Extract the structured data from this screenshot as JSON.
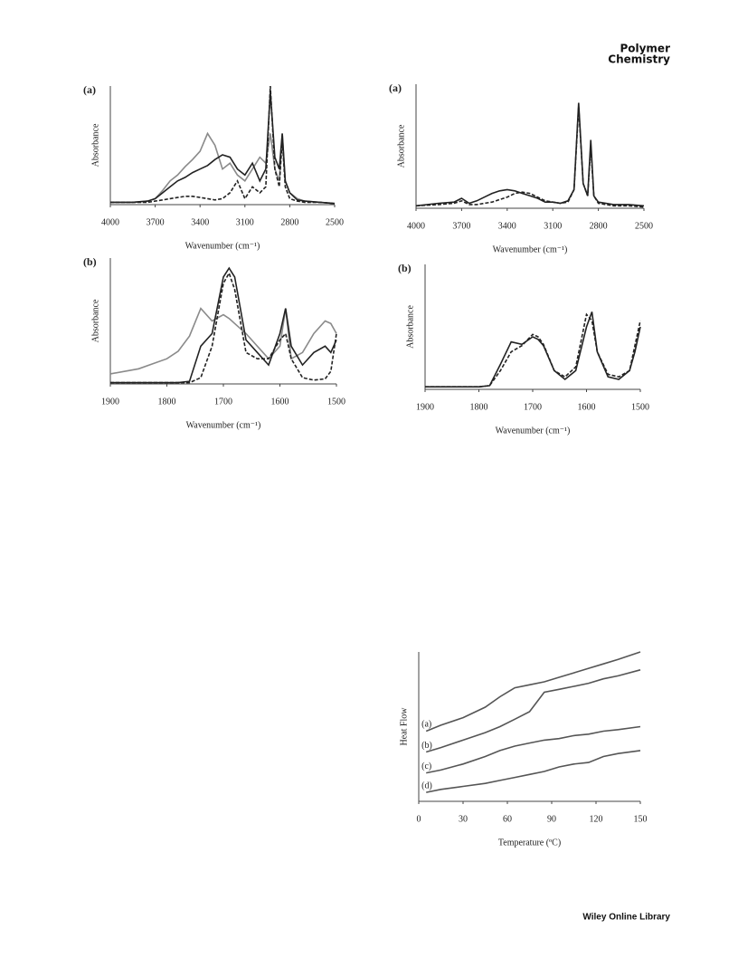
{
  "header": {
    "line1": "Polymer",
    "line2": "Chemistry"
  },
  "footer": "Wiley Online Library",
  "chart_data": [
    {
      "type": "line",
      "panel_label": "(a)",
      "ylabel": "Absorbance",
      "xlabel": "Wavenumber (cm⁻¹)",
      "xlim": [
        4000,
        2500
      ],
      "xticks": [
        4000,
        3700,
        3400,
        3100,
        2800,
        2500
      ],
      "ylim": [
        0,
        1
      ],
      "x": [
        4000,
        3850,
        3750,
        3700,
        3650,
        3600,
        3550,
        3500,
        3450,
        3400,
        3350,
        3300,
        3250,
        3200,
        3150,
        3100,
        3050,
        3000,
        2960,
        2930,
        2900,
        2870,
        2850,
        2830,
        2800,
        2750,
        2700,
        2600,
        2500
      ],
      "series": [
        {
          "color": "#8a8a8a",
          "dash": false,
          "values": [
            0.02,
            0.02,
            0.03,
            0.05,
            0.12,
            0.2,
            0.25,
            0.32,
            0.38,
            0.45,
            0.6,
            0.5,
            0.3,
            0.35,
            0.25,
            0.2,
            0.3,
            0.4,
            0.35,
            0.6,
            0.3,
            0.2,
            0.6,
            0.2,
            0.1,
            0.05,
            0.03,
            0.02,
            0.01
          ]
        },
        {
          "color": "#222222",
          "dash": false,
          "values": [
            0.02,
            0.02,
            0.03,
            0.05,
            0.1,
            0.15,
            0.2,
            0.23,
            0.27,
            0.3,
            0.33,
            0.38,
            0.42,
            0.4,
            0.3,
            0.25,
            0.35,
            0.2,
            0.3,
            0.95,
            0.4,
            0.3,
            0.6,
            0.2,
            0.1,
            0.04,
            0.03,
            0.02,
            0.01
          ]
        },
        {
          "color": "#222222",
          "dash": true,
          "values": [
            0.02,
            0.02,
            0.02,
            0.03,
            0.04,
            0.05,
            0.06,
            0.07,
            0.07,
            0.06,
            0.05,
            0.04,
            0.05,
            0.1,
            0.2,
            0.05,
            0.15,
            0.1,
            0.15,
            1.0,
            0.3,
            0.15,
            0.55,
            0.15,
            0.05,
            0.03,
            0.02,
            0.02,
            0.01
          ]
        }
      ]
    },
    {
      "type": "line",
      "panel_label": "(a)",
      "ylabel": "Absorbance",
      "xlabel": "Wavenumber (cm⁻¹)",
      "xlim": [
        4000,
        2500
      ],
      "xticks": [
        4000,
        3700,
        3400,
        3100,
        2800,
        2500
      ],
      "ylim": [
        0,
        1
      ],
      "x": [
        4000,
        3850,
        3750,
        3700,
        3650,
        3600,
        3550,
        3500,
        3450,
        3400,
        3350,
        3300,
        3250,
        3200,
        3150,
        3100,
        3050,
        3000,
        2960,
        2930,
        2900,
        2870,
        2850,
        2830,
        2800,
        2750,
        2700,
        2600,
        2500
      ],
      "series": [
        {
          "color": "#222222",
          "dash": false,
          "values": [
            0.02,
            0.04,
            0.05,
            0.08,
            0.04,
            0.06,
            0.09,
            0.12,
            0.14,
            0.15,
            0.14,
            0.12,
            0.1,
            0.08,
            0.05,
            0.05,
            0.04,
            0.06,
            0.15,
            0.85,
            0.2,
            0.1,
            0.55,
            0.1,
            0.05,
            0.04,
            0.03,
            0.03,
            0.02
          ]
        },
        {
          "color": "#222222",
          "dash": true,
          "values": [
            0.02,
            0.03,
            0.04,
            0.06,
            0.03,
            0.03,
            0.04,
            0.05,
            0.07,
            0.09,
            0.12,
            0.13,
            0.12,
            0.09,
            0.06,
            0.05,
            0.04,
            0.05,
            0.15,
            0.82,
            0.2,
            0.1,
            0.5,
            0.1,
            0.04,
            0.03,
            0.02,
            0.02,
            0.01
          ]
        }
      ]
    },
    {
      "type": "line",
      "panel_label": "(b)",
      "ylabel": "Absorbance",
      "xlabel": "Wavenumber (cm⁻¹)",
      "xlim": [
        1900,
        1500
      ],
      "xticks": [
        1900,
        1800,
        1700,
        1600,
        1500
      ],
      "ylim": [
        0,
        1
      ],
      "x": [
        1900,
        1850,
        1800,
        1780,
        1760,
        1740,
        1720,
        1700,
        1690,
        1680,
        1660,
        1640,
        1620,
        1600,
        1590,
        1580,
        1560,
        1540,
        1520,
        1510,
        1500
      ],
      "series": [
        {
          "color": "#8a8a8a",
          "dash": false,
          "values": [
            0.08,
            0.12,
            0.2,
            0.26,
            0.38,
            0.6,
            0.5,
            0.55,
            0.52,
            0.48,
            0.4,
            0.3,
            0.2,
            0.3,
            0.6,
            0.2,
            0.25,
            0.4,
            0.5,
            0.48,
            0.4
          ]
        },
        {
          "color": "#222222",
          "dash": false,
          "values": [
            0.01,
            0.01,
            0.01,
            0.01,
            0.02,
            0.3,
            0.4,
            0.85,
            0.92,
            0.85,
            0.35,
            0.25,
            0.15,
            0.4,
            0.6,
            0.3,
            0.15,
            0.25,
            0.3,
            0.25,
            0.35
          ]
        },
        {
          "color": "#222222",
          "dash": true,
          "values": [
            0.01,
            0.01,
            0.01,
            0.01,
            0.01,
            0.05,
            0.3,
            0.8,
            0.88,
            0.75,
            0.25,
            0.2,
            0.2,
            0.35,
            0.4,
            0.2,
            0.05,
            0.03,
            0.04,
            0.1,
            0.4
          ]
        }
      ]
    },
    {
      "type": "line",
      "panel_label": "(b)",
      "ylabel": "Absorbance",
      "xlabel": "Wavenumber (cm⁻¹)",
      "xlim": [
        1900,
        1500
      ],
      "xticks": [
        1900,
        1800,
        1700,
        1600,
        1500
      ],
      "ylim": [
        0,
        1
      ],
      "x": [
        1900,
        1850,
        1800,
        1780,
        1760,
        1740,
        1720,
        1700,
        1690,
        1680,
        1660,
        1640,
        1620,
        1600,
        1590,
        1580,
        1560,
        1540,
        1520,
        1510,
        1500
      ],
      "series": [
        {
          "color": "#222222",
          "dash": false,
          "values": [
            0.02,
            0.02,
            0.02,
            0.03,
            0.2,
            0.38,
            0.36,
            0.42,
            0.4,
            0.35,
            0.15,
            0.08,
            0.15,
            0.5,
            0.62,
            0.3,
            0.1,
            0.08,
            0.15,
            0.3,
            0.5
          ]
        },
        {
          "color": "#222222",
          "dash": true,
          "values": [
            0.02,
            0.02,
            0.02,
            0.03,
            0.15,
            0.3,
            0.35,
            0.44,
            0.42,
            0.36,
            0.15,
            0.1,
            0.18,
            0.6,
            0.55,
            0.3,
            0.12,
            0.1,
            0.15,
            0.35,
            0.55
          ]
        }
      ]
    },
    {
      "type": "line",
      "ylabel": "Heat Flow",
      "xlabel": "Temperature (ºC)",
      "xlim": [
        0,
        150
      ],
      "xticks": [
        0,
        30,
        60,
        90,
        120,
        150
      ],
      "ylim": [
        0,
        1
      ],
      "x": [
        5,
        15,
        30,
        45,
        55,
        65,
        75,
        85,
        95,
        105,
        115,
        125,
        135,
        150
      ],
      "series": [
        {
          "name": "(a)",
          "color": "#555555",
          "dash": false,
          "values": [
            0.47,
            0.51,
            0.56,
            0.63,
            0.7,
            0.76,
            0.78,
            0.8,
            0.83,
            0.86,
            0.89,
            0.92,
            0.95,
            1.0
          ]
        },
        {
          "name": "(b)",
          "color": "#555555",
          "dash": false,
          "values": [
            0.33,
            0.36,
            0.41,
            0.46,
            0.5,
            0.55,
            0.6,
            0.73,
            0.75,
            0.77,
            0.79,
            0.82,
            0.84,
            0.88
          ]
        },
        {
          "name": "(c)",
          "color": "#555555",
          "dash": false,
          "values": [
            0.19,
            0.21,
            0.25,
            0.3,
            0.34,
            0.37,
            0.39,
            0.41,
            0.42,
            0.44,
            0.45,
            0.47,
            0.48,
            0.5
          ]
        },
        {
          "name": "(d)",
          "color": "#555555",
          "dash": false,
          "values": [
            0.06,
            0.08,
            0.1,
            0.12,
            0.14,
            0.16,
            0.18,
            0.2,
            0.23,
            0.25,
            0.26,
            0.3,
            0.32,
            0.34
          ]
        }
      ]
    }
  ]
}
